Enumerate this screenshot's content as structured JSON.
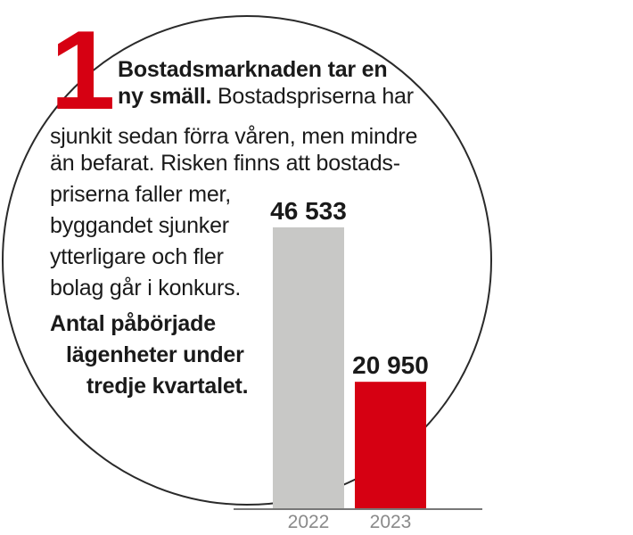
{
  "article": {
    "number": "1",
    "headline": "Bostadsmarknaden tar en",
    "headline_cont": "ny smäll.",
    "body_first": "Bostadspriserna har",
    "lines": [
      "sjunkit sedan förra våren, men mindre",
      "än befarat. Risken finns att bostads-",
      "priserna faller mer,",
      "byggandet sjunker",
      "ytterligare och fler",
      "bolag går i konkurs."
    ],
    "chart_caption": [
      "Antal påbörjade",
      "lägenheter under",
      "tredje kvartalet."
    ]
  },
  "colors": {
    "accent": "#d60012",
    "bar_2022": "#c8c8c6",
    "bar_2023": "#d60012",
    "circle": "#2a2a2a"
  },
  "chart_data": {
    "type": "bar",
    "categories": [
      "2022",
      "2023"
    ],
    "values": [
      46533,
      20950
    ],
    "value_labels": [
      "46 533",
      "20 950"
    ],
    "title": "",
    "xlabel": "",
    "ylabel": "",
    "ylim": [
      0,
      50000
    ],
    "grid": false,
    "legend": "none"
  }
}
